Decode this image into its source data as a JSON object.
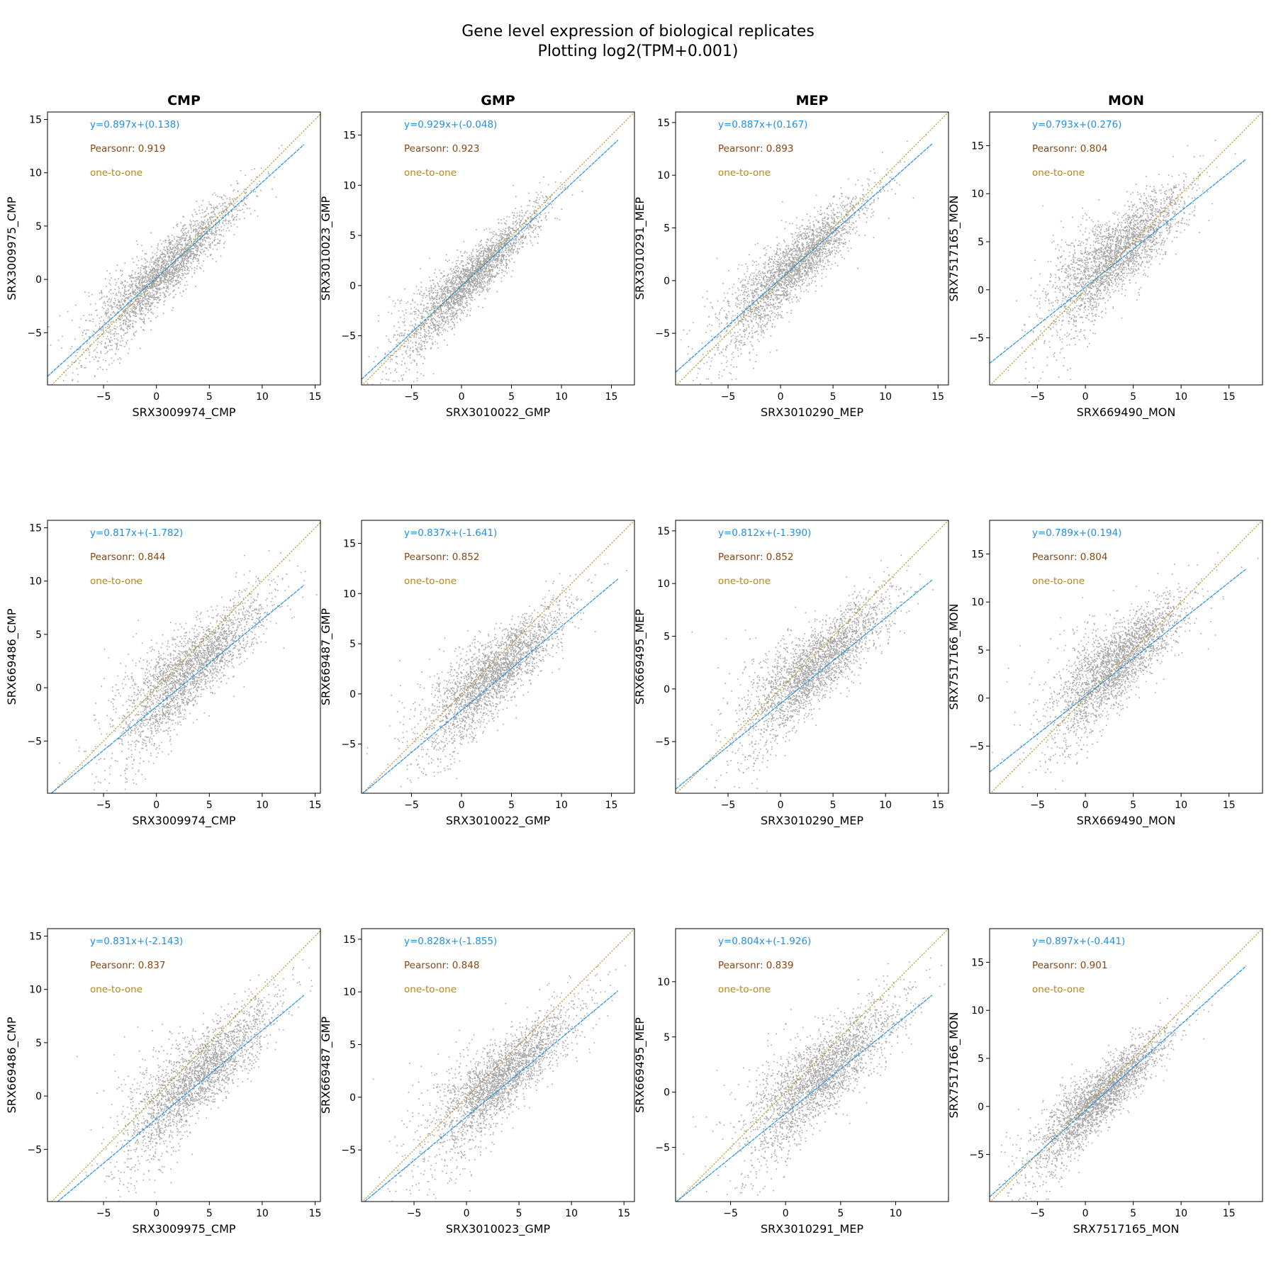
{
  "figure": {
    "title": "Gene level expression of biological replicates",
    "subtitle": "Plotting log2(TPM+0.001)"
  },
  "colors": {
    "fit": "#1f8fe5",
    "pearson": "#8b4513",
    "one_to_one": "#b8860b",
    "points": "#000000"
  },
  "chart_data": [
    {
      "type": "scatter",
      "row": 0,
      "col": 0,
      "column_title": "CMP",
      "xlabel": "SRX3009974_CMP",
      "ylabel": "SRX3009975_CMP",
      "xlim": [
        -10.3,
        15.5
      ],
      "ylim": [
        -9.9,
        15.7
      ],
      "xticks": [
        -5,
        0,
        5,
        10,
        15
      ],
      "yticks": [
        -5,
        0,
        5,
        10,
        15
      ],
      "fit_label": "y=0.897x+(0.138)",
      "slope": 0.897,
      "intercept": 0.138,
      "pearson_label": "Pearsonr: 0.919",
      "pearson_r": 0.919,
      "one_to_one_label": "one-to-one",
      "cloud_center": [
        0.5,
        0.5
      ]
    },
    {
      "type": "scatter",
      "row": 0,
      "col": 1,
      "column_title": "GMP",
      "xlabel": "SRX3010022_GMP",
      "ylabel": "SRX3010023_GMP",
      "xlim": [
        -10.0,
        17.3
      ],
      "ylim": [
        -9.9,
        17.3
      ],
      "xticks": [
        -5,
        0,
        5,
        10,
        15
      ],
      "yticks": [
        -5,
        0,
        5,
        10,
        15
      ],
      "fit_label": "y=0.929x+(-0.048)",
      "slope": 0.929,
      "intercept": -0.048,
      "pearson_label": "Pearsonr: 0.923",
      "pearson_r": 0.923,
      "one_to_one_label": "one-to-one",
      "cloud_center": [
        0.5,
        0.5
      ]
    },
    {
      "type": "scatter",
      "row": 0,
      "col": 2,
      "column_title": "MEP",
      "xlabel": "SRX3010290_MEP",
      "ylabel": "SRX3010291_MEP",
      "xlim": [
        -10.0,
        16.0
      ],
      "ylim": [
        -9.9,
        16.0
      ],
      "xticks": [
        -5,
        0,
        5,
        10,
        15
      ],
      "yticks": [
        -5,
        0,
        5,
        10,
        15
      ],
      "fit_label": "y=0.887x+(0.167)",
      "slope": 0.887,
      "intercept": 0.167,
      "pearson_label": "Pearsonr: 0.893",
      "pearson_r": 0.893,
      "one_to_one_label": "one-to-one",
      "cloud_center": [
        1.0,
        1.0
      ]
    },
    {
      "type": "scatter",
      "row": 0,
      "col": 3,
      "column_title": "MON",
      "xlabel": "SRX669490_MON",
      "ylabel": "SRX7517165_MON",
      "xlim": [
        -10.0,
        18.5
      ],
      "ylim": [
        -9.9,
        18.5
      ],
      "xticks": [
        -5,
        0,
        5,
        10,
        15
      ],
      "yticks": [
        -5,
        0,
        5,
        10,
        15
      ],
      "fit_label": "y=0.793x+(0.276)",
      "slope": 0.793,
      "intercept": 0.276,
      "pearson_label": "Pearsonr: 0.804",
      "pearson_r": 0.804,
      "one_to_one_label": "one-to-one",
      "cloud_center": [
        3.0,
        3.0
      ]
    },
    {
      "type": "scatter",
      "row": 1,
      "col": 0,
      "column_title": "",
      "xlabel": "SRX3009974_CMP",
      "ylabel": "SRX669486_CMP",
      "xlim": [
        -10.3,
        15.5
      ],
      "ylim": [
        -9.9,
        15.7
      ],
      "xticks": [
        -5,
        0,
        5,
        10,
        15
      ],
      "yticks": [
        -5,
        0,
        5,
        10,
        15
      ],
      "fit_label": "y=0.817x+(-1.782)",
      "slope": 0.817,
      "intercept": -1.782,
      "pearson_label": "Pearsonr: 0.844",
      "pearson_r": 0.844,
      "one_to_one_label": "one-to-one",
      "cloud_center": [
        3.0,
        2.0
      ]
    },
    {
      "type": "scatter",
      "row": 1,
      "col": 1,
      "column_title": "",
      "xlabel": "SRX3010022_GMP",
      "ylabel": "SRX669487_GMP",
      "xlim": [
        -10.0,
        17.3
      ],
      "ylim": [
        -9.9,
        17.3
      ],
      "xticks": [
        -5,
        0,
        5,
        10,
        15
      ],
      "yticks": [
        -5,
        0,
        5,
        10,
        15
      ],
      "fit_label": "y=0.837x+(-1.641)",
      "slope": 0.837,
      "intercept": -1.641,
      "pearson_label": "Pearsonr: 0.852",
      "pearson_r": 0.852,
      "one_to_one_label": "one-to-one",
      "cloud_center": [
        3.0,
        2.0
      ]
    },
    {
      "type": "scatter",
      "row": 1,
      "col": 2,
      "column_title": "",
      "xlabel": "SRX3010290_MEP",
      "ylabel": "SRX669495_MEP",
      "xlim": [
        -10.0,
        16.0
      ],
      "ylim": [
        -9.9,
        16.0
      ],
      "xticks": [
        -5,
        0,
        5,
        10,
        15
      ],
      "yticks": [
        -5,
        0,
        5,
        10,
        15
      ],
      "fit_label": "y=0.812x+(-1.390)",
      "slope": 0.812,
      "intercept": -1.39,
      "pearson_label": "Pearsonr: 0.852",
      "pearson_r": 0.852,
      "one_to_one_label": "one-to-one",
      "cloud_center": [
        3.0,
        2.0
      ]
    },
    {
      "type": "scatter",
      "row": 1,
      "col": 3,
      "column_title": "",
      "xlabel": "SRX669490_MON",
      "ylabel": "SRX7517166_MON",
      "xlim": [
        -10.0,
        18.5
      ],
      "ylim": [
        -9.9,
        18.5
      ],
      "xticks": [
        -5,
        0,
        5,
        10,
        15
      ],
      "yticks": [
        -5,
        0,
        5,
        10,
        15
      ],
      "fit_label": "y=0.789x+(0.194)",
      "slope": 0.789,
      "intercept": 0.194,
      "pearson_label": "Pearsonr: 0.804",
      "pearson_r": 0.804,
      "one_to_one_label": "one-to-one",
      "cloud_center": [
        3.0,
        2.5
      ]
    },
    {
      "type": "scatter",
      "row": 2,
      "col": 0,
      "column_title": "",
      "xlabel": "SRX3009975_CMP",
      "ylabel": "SRX669486_CMP",
      "xlim": [
        -10.3,
        15.5
      ],
      "ylim": [
        -9.9,
        15.7
      ],
      "xticks": [
        -5,
        0,
        5,
        10,
        15
      ],
      "yticks": [
        -5,
        0,
        5,
        10,
        15
      ],
      "fit_label": "y=0.831x+(-2.143)",
      "slope": 0.831,
      "intercept": -2.143,
      "pearson_label": "Pearsonr: 0.837",
      "pearson_r": 0.837,
      "one_to_one_label": "one-to-one",
      "cloud_center": [
        3.5,
        2.0
      ]
    },
    {
      "type": "scatter",
      "row": 2,
      "col": 1,
      "column_title": "",
      "xlabel": "SRX3010023_GMP",
      "ylabel": "SRX669487_GMP",
      "xlim": [
        -10.0,
        16.0
      ],
      "ylim": [
        -9.9,
        16.0
      ],
      "xticks": [
        -5,
        0,
        5,
        10,
        15
      ],
      "yticks": [
        -5,
        0,
        5,
        10,
        15
      ],
      "fit_label": "y=0.828x+(-1.855)",
      "slope": 0.828,
      "intercept": -1.855,
      "pearson_label": "Pearsonr: 0.848",
      "pearson_r": 0.848,
      "one_to_one_label": "one-to-one",
      "cloud_center": [
        3.0,
        2.0
      ]
    },
    {
      "type": "scatter",
      "row": 2,
      "col": 2,
      "column_title": "",
      "xlabel": "SRX3010291_MEP",
      "ylabel": "SRX669495_MEP",
      "xlim": [
        -10.0,
        14.8
      ],
      "ylim": [
        -9.9,
        14.8
      ],
      "xticks": [
        -5,
        0,
        5,
        10
      ],
      "yticks": [
        -5,
        0,
        5,
        10
      ],
      "fit_label": "y=0.804x+(-1.926)",
      "slope": 0.804,
      "intercept": -1.926,
      "pearson_label": "Pearsonr: 0.839",
      "pearson_r": 0.839,
      "one_to_one_label": "one-to-one",
      "cloud_center": [
        3.0,
        1.5
      ]
    },
    {
      "type": "scatter",
      "row": 2,
      "col": 3,
      "column_title": "",
      "xlabel": "SRX7517165_MON",
      "ylabel": "SRX7517166_MON",
      "xlim": [
        -10.0,
        18.5
      ],
      "ylim": [
        -9.9,
        18.5
      ],
      "xticks": [
        -5,
        0,
        5,
        10,
        15
      ],
      "yticks": [
        -5,
        0,
        5,
        10,
        15
      ],
      "fit_label": "y=0.897x+(-0.441)",
      "slope": 0.897,
      "intercept": -0.441,
      "pearson_label": "Pearsonr: 0.901",
      "pearson_r": 0.901,
      "one_to_one_label": "one-to-one",
      "cloud_center": [
        1.0,
        0.5
      ]
    }
  ]
}
